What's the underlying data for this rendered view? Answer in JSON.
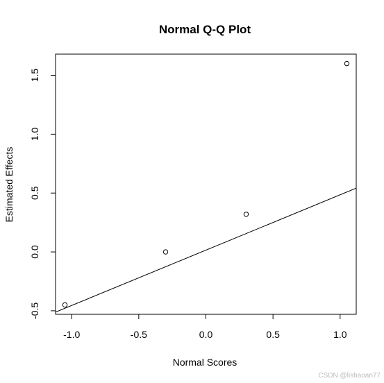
{
  "chart_data": {
    "type": "scatter",
    "title": "Normal Q-Q Plot",
    "xlabel": "Normal Scores",
    "ylabel": "Estimated Effects",
    "xlim": [
      -1.12,
      1.12
    ],
    "ylim": [
      -0.53,
      1.68
    ],
    "x_ticks": [
      -1.0,
      -0.5,
      0.0,
      0.5,
      1.0
    ],
    "x_tick_labels": [
      "-1.0",
      "-0.5",
      "0.0",
      "0.5",
      "1.0"
    ],
    "y_ticks": [
      -0.5,
      0.0,
      0.5,
      1.0,
      1.5
    ],
    "y_tick_labels": [
      "-0.5",
      "0.0",
      "0.5",
      "1.0",
      "1.5"
    ],
    "points": [
      {
        "x": -1.05,
        "y": -0.45
      },
      {
        "x": -0.3,
        "y": 0.0
      },
      {
        "x": 0.3,
        "y": 0.32
      },
      {
        "x": 1.05,
        "y": 1.6
      }
    ],
    "reference_line": {
      "intercept": 0.015,
      "slope": 0.47
    },
    "grid": false,
    "legend": "none"
  },
  "watermark": "CSDN @lishaoan77"
}
